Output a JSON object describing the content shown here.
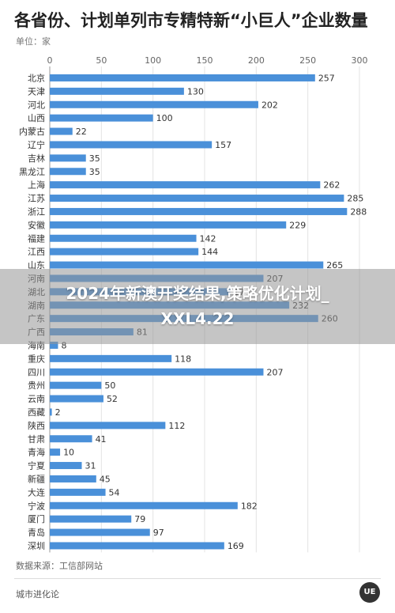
{
  "header": {
    "title": "各省份、计划单列市专精特新“小巨人”企业数量",
    "unit": "单位：家"
  },
  "chart_data": {
    "type": "bar",
    "orientation": "horizontal",
    "xlim": [
      0,
      300
    ],
    "xticks": [
      0,
      50,
      100,
      150,
      200,
      250,
      300
    ],
    "grid": true,
    "bar_color": "#4a90d9",
    "categories": [
      "北京",
      "天津",
      "河北",
      "山西",
      "内蒙古",
      "辽宁",
      "吉林",
      "黑龙江",
      "上海",
      "江苏",
      "浙江",
      "安徽",
      "福建",
      "江西",
      "山东",
      "河南",
      "湖北",
      "湖南",
      "广东",
      "广西",
      "海南",
      "重庆",
      "四川",
      "贵州",
      "云南",
      "西藏",
      "陕西",
      "甘肃",
      "青海",
      "宁夏",
      "新疆",
      "大连",
      "宁波",
      "厦门",
      "青岛",
      "深圳"
    ],
    "values": [
      257,
      130,
      202,
      100,
      22,
      157,
      35,
      35,
      262,
      285,
      288,
      229,
      142,
      144,
      265,
      207,
      175,
      232,
      260,
      81,
      8,
      118,
      207,
      50,
      52,
      2,
      112,
      41,
      10,
      31,
      45,
      54,
      182,
      79,
      97,
      169
    ]
  },
  "overlay": {
    "line1": "2024年新澳开奖结果,策略优化计划_",
    "line2": "XXL4.22"
  },
  "footer": {
    "source": "数据来源：工信部网站",
    "brand": "城市进化论",
    "logo_text": "UE"
  }
}
